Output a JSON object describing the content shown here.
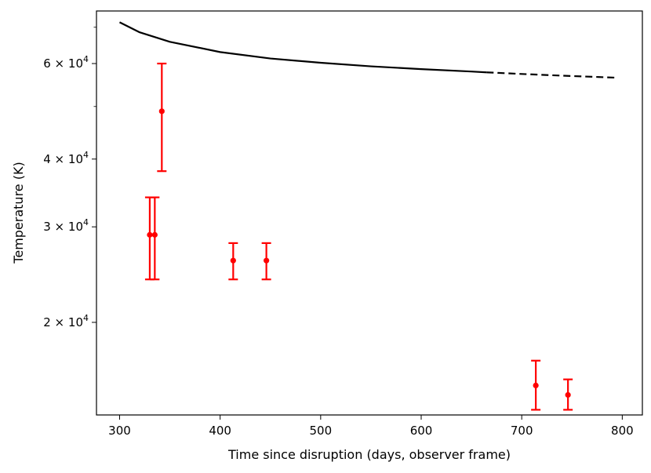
{
  "chart_data": {
    "type": "scatter",
    "xlabel": "Time since disruption (days, observer frame)",
    "ylabel": "Temperature (K)",
    "xlim": [
      277,
      820
    ],
    "ylim": [
      13500,
      75000
    ],
    "yscale": "log",
    "grid": false,
    "x_ticks": [
      {
        "value": 300,
        "label": "300"
      },
      {
        "value": 400,
        "label": "400"
      },
      {
        "value": 500,
        "label": "500"
      },
      {
        "value": 600,
        "label": "600"
      },
      {
        "value": 700,
        "label": "700"
      },
      {
        "value": 800,
        "label": "800"
      }
    ],
    "y_ticks": [
      {
        "value": 20000,
        "mantissa": "2",
        "exponent": "4"
      },
      {
        "value": 30000,
        "mantissa": "3",
        "exponent": "4"
      },
      {
        "value": 40000,
        "mantissa": "4",
        "exponent": "4"
      },
      {
        "value": 60000,
        "mantissa": "6",
        "exponent": "4"
      }
    ],
    "y_minor_ticks": [
      50000,
      70000
    ],
    "model_curve": {
      "color": "#000000",
      "solid": [
        {
          "x": 300,
          "y": 71500
        },
        {
          "x": 320,
          "y": 68500
        },
        {
          "x": 350,
          "y": 65800
        },
        {
          "x": 400,
          "y": 63000
        },
        {
          "x": 450,
          "y": 61300
        },
        {
          "x": 500,
          "y": 60200
        },
        {
          "x": 550,
          "y": 59300
        },
        {
          "x": 600,
          "y": 58600
        },
        {
          "x": 650,
          "y": 58000
        },
        {
          "x": 665,
          "y": 57800
        }
      ],
      "dashed": [
        {
          "x": 665,
          "y": 57800
        },
        {
          "x": 700,
          "y": 57400
        },
        {
          "x": 750,
          "y": 56900
        },
        {
          "x": 795,
          "y": 56500
        }
      ]
    },
    "observations": {
      "color": "#ff0000",
      "points": [
        {
          "x": 330,
          "y": 29000,
          "low": 24000,
          "high": 34000
        },
        {
          "x": 335,
          "y": 29000,
          "low": 24000,
          "high": 34000
        },
        {
          "x": 342,
          "y": 49000,
          "low": 38000,
          "high": 60000
        },
        {
          "x": 413,
          "y": 26000,
          "low": 24000,
          "high": 28000
        },
        {
          "x": 446,
          "y": 26000,
          "low": 24000,
          "high": 28000
        },
        {
          "x": 714,
          "y": 15300,
          "low": 13800,
          "high": 17000
        },
        {
          "x": 746,
          "y": 14700,
          "low": 13800,
          "high": 15700
        }
      ]
    }
  }
}
